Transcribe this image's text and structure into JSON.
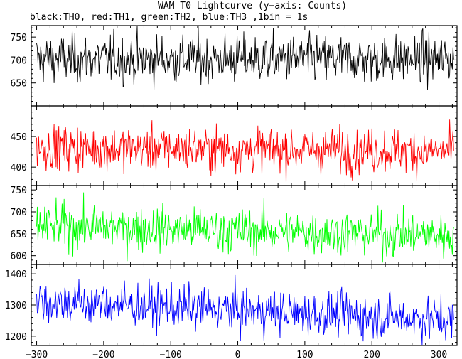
{
  "title": "WAM T0 Lightcurve (y−axis: Counts)",
  "subtitle": "black:TH0, red:TH1, green:TH2, blue:TH3 ,1bin = 1s",
  "chart_data": [
    {
      "type": "line",
      "series": [
        {
          "name": "TH0",
          "color": "#000000",
          "mean": 702,
          "noise": 26,
          "trend": 0
        }
      ],
      "x": {
        "min": -300,
        "max": 322,
        "step": 1
      },
      "ylim": [
        600,
        775
      ],
      "yticks": [
        650,
        700,
        750
      ]
    },
    {
      "type": "line",
      "series": [
        {
          "name": "TH1",
          "color": "#ff0000",
          "mean": 432,
          "noise": 18,
          "trend": -6
        }
      ],
      "x": {
        "min": -300,
        "max": 322,
        "step": 1
      },
      "ylim": [
        370,
        500
      ],
      "yticks": [
        400,
        450
      ]
    },
    {
      "type": "line",
      "series": [
        {
          "name": "TH2",
          "color": "#00ff00",
          "mean": 668,
          "noise": 25,
          "trend": -22
        }
      ],
      "x": {
        "min": -300,
        "max": 322,
        "step": 1
      },
      "ylim": [
        580,
        760
      ],
      "yticks": [
        600,
        650,
        700,
        750
      ]
    },
    {
      "type": "line",
      "series": [
        {
          "name": "TH3",
          "color": "#0000ff",
          "mean": 1312,
          "noise": 35,
          "trend": -60
        }
      ],
      "x": {
        "min": -300,
        "max": 322,
        "step": 1
      },
      "ylim": [
        1170,
        1430
      ],
      "yticks": [
        1200,
        1300,
        1400
      ]
    }
  ],
  "xaxis": {
    "ticks": [
      -300,
      -200,
      -100,
      0,
      100,
      200,
      300
    ],
    "tick_labels": [
      "−300",
      "−200",
      "−100",
      "0",
      "100",
      "200",
      "300"
    ]
  }
}
